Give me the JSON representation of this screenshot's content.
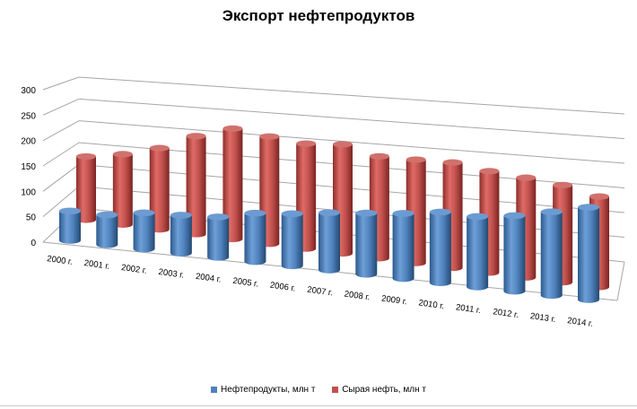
{
  "chart_data": {
    "type": "bar",
    "title": "Экспорт нефтепродуктов",
    "categories": [
      "2000 г.",
      "2001 г.",
      "2002 г.",
      "2003 г.",
      "2004 г.",
      "2005 г.",
      "2006 г.",
      "2007 г.",
      "2008 г.",
      "2009 г.",
      "2010 г.",
      "2011 г.",
      "2012 г.",
      "2013 г.",
      "2014 г."
    ],
    "yticks": [
      "0",
      "50",
      "100",
      "150",
      "200",
      "250",
      "300"
    ],
    "ylim": [
      0,
      300
    ],
    "grid": true,
    "legend_position": "bottom",
    "series": [
      {
        "name": "Нефтепродукты,  млн т",
        "color": "#4f81bd",
        "values": [
          63,
          63,
          75,
          78,
          82,
          97,
          103,
          112,
          118,
          124,
          133,
          131,
          139,
          152,
          166
        ]
      },
      {
        "name": "Сырая нефть,  млн т",
        "color": "#c0504d",
        "values": [
          145,
          162,
          188,
          228,
          258,
          252,
          248,
          259,
          243,
          248,
          254,
          246,
          243,
          238,
          223
        ]
      }
    ]
  }
}
